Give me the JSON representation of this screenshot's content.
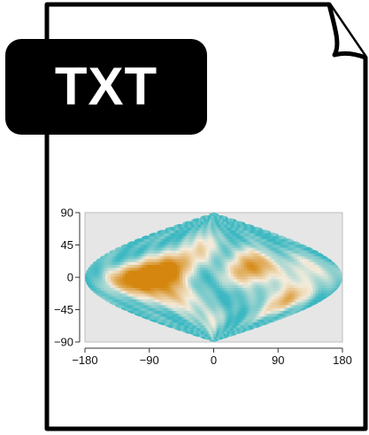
{
  "badge": {
    "label": "TXT"
  },
  "icon": {
    "name": "document-file-icon",
    "stroke_color": "#000000",
    "fill_color": "#ffffff"
  },
  "chart_data": {
    "type": "heatmap",
    "projection": "sinusoidal",
    "grid": false,
    "background_color": "#e6e6e6",
    "colors": {
      "low": "#3cb8c2",
      "mid": "#f4ecdc",
      "high": "#d4860e"
    },
    "x_ticks": [
      "−180",
      "−90",
      "0",
      "90",
      "180"
    ],
    "y_ticks": [
      "90",
      "45",
      "0",
      "−45",
      "−90"
    ],
    "xlim": [
      -180,
      180
    ],
    "ylim": [
      -90,
      90
    ],
    "warm_regions": [
      {
        "lon": -95,
        "lat": 0,
        "strength": 1.0
      },
      {
        "lon": -60,
        "lat": 15,
        "strength": 0.9
      },
      {
        "lon": -125,
        "lat": -5,
        "strength": 0.6
      },
      {
        "lon": -60,
        "lat": -25,
        "strength": 0.6
      },
      {
        "lon": -20,
        "lat": 45,
        "strength": 0.45
      },
      {
        "lon": 45,
        "lat": 10,
        "strength": 0.65
      },
      {
        "lon": 75,
        "lat": 20,
        "strength": 0.5
      },
      {
        "lon": 115,
        "lat": -30,
        "strength": 0.7
      },
      {
        "lon": -10,
        "lat": -60,
        "strength": 0.35
      },
      {
        "lon": 140,
        "lat": 10,
        "strength": 0.35
      }
    ]
  }
}
